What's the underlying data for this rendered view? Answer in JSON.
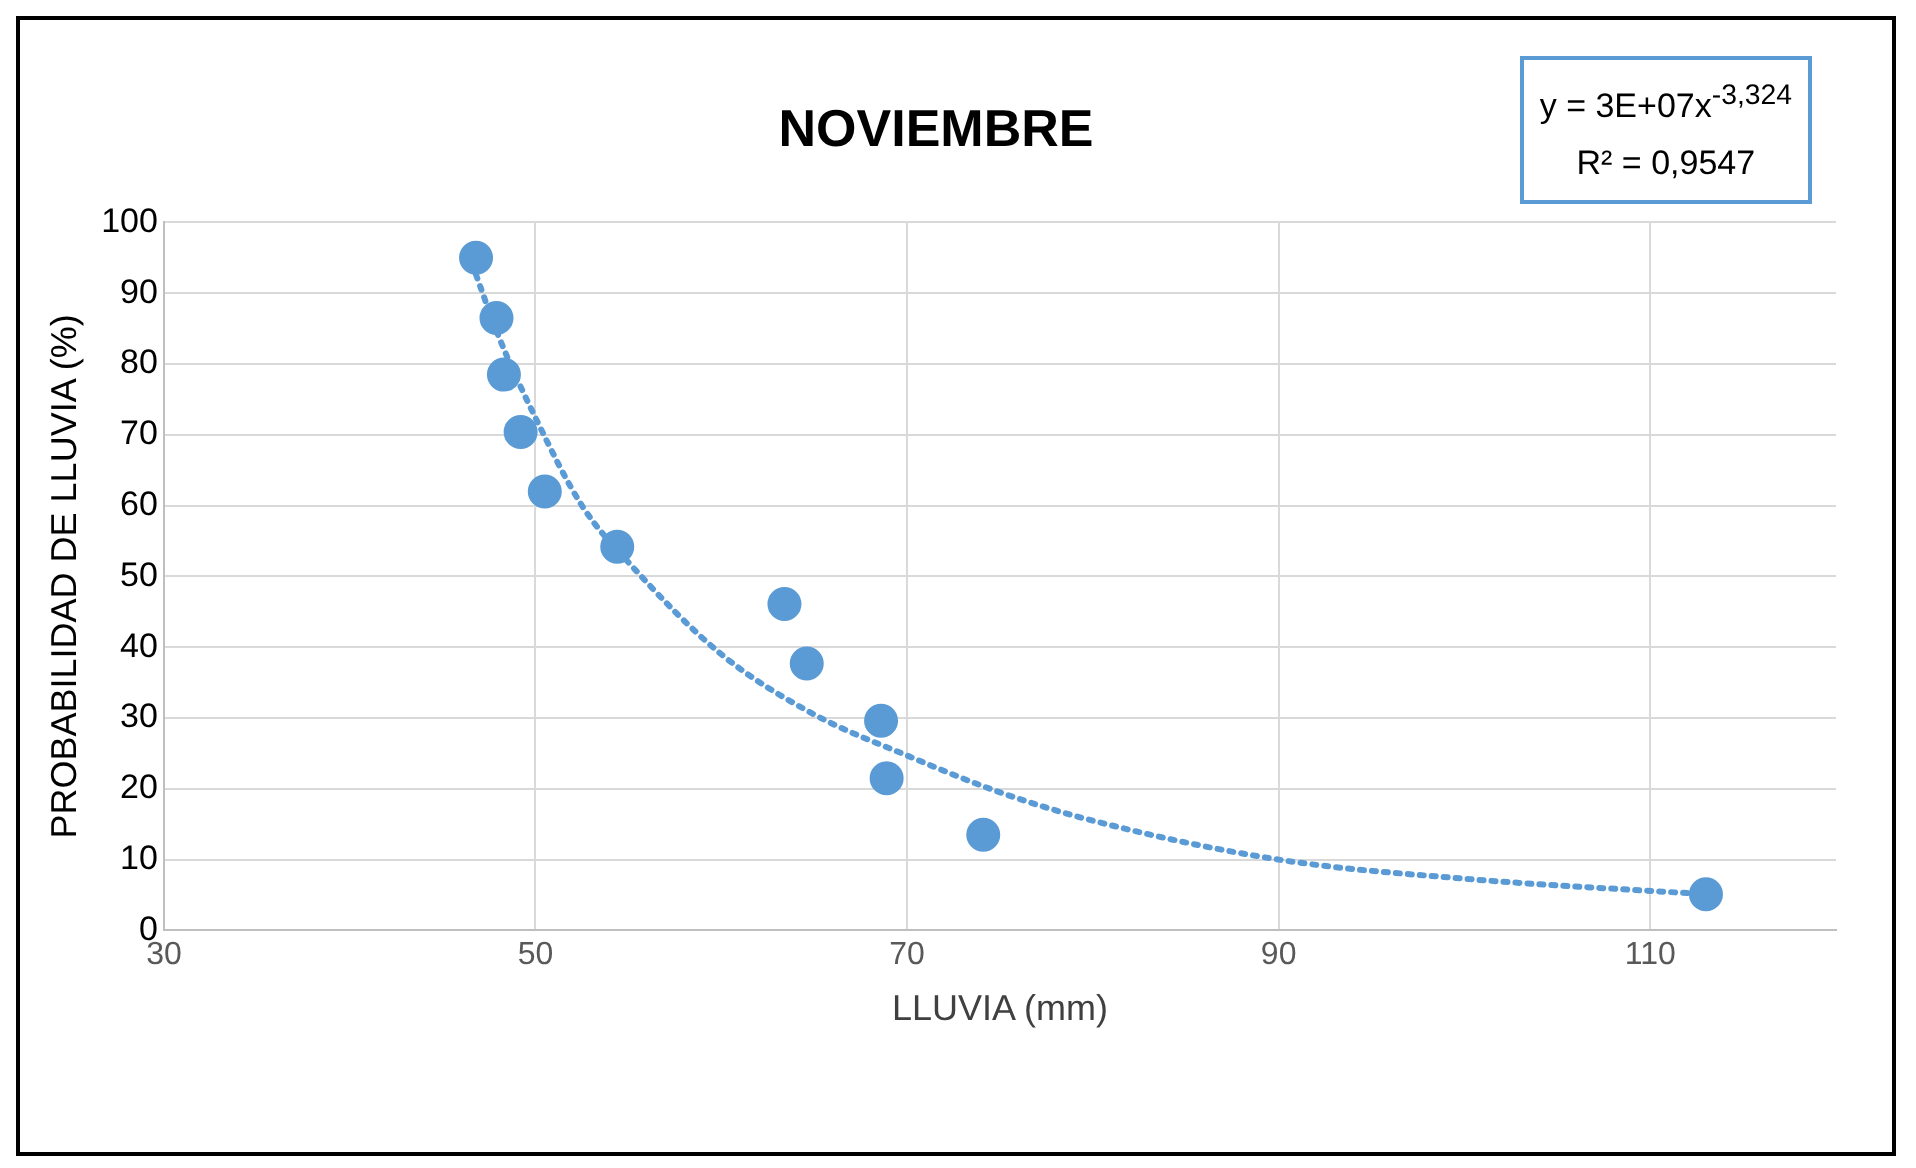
{
  "chart_data": {
    "type": "scatter",
    "title": "NOVIEMBRE",
    "xlabel": "LLUVIA (mm)",
    "ylabel": "PROBABILIDAD DE LLUVIA (%)",
    "annotations": [
      "y = 3E+07x$^{-3,324}$",
      "R² = 0,9547"
    ],
    "series": [
      {
        "type": "scatter",
        "color": "#5b9bd5",
        "marker": "circle",
        "x": [
          46.8,
          47.9,
          48.3,
          49.2,
          50.5,
          54.4,
          63.4,
          64.6,
          68.6,
          68.9,
          74.1,
          113
        ],
        "values": [
          95,
          86.5,
          78.5,
          70.4,
          62,
          54.2,
          46.1,
          37.7,
          29.6,
          21.5,
          13.5,
          5.1
        ]
      },
      {
        "type": "line",
        "color": "#5b9bd5",
        "line_style": "dotted",
        "marker": "none",
        "x": [
          46.8,
          48,
          50,
          52.5,
          55,
          60,
          65,
          70,
          75,
          80,
          90,
          100,
          113
        ],
        "values": [
          92.6,
          84,
          72.4,
          60,
          52,
          39,
          30.5,
          24.7,
          19.5,
          15.5,
          10,
          7.3,
          5.1
        ]
      }
    ],
    "xlim": [
      30,
      120
    ],
    "xticks": [
      30,
      50,
      70,
      90,
      110
    ],
    "ylim": [
      0,
      100
    ],
    "yticks": [
      0,
      10,
      20,
      30,
      40,
      50,
      60,
      70,
      80,
      90,
      100
    ],
    "grid": true,
    "legend": false
  }
}
